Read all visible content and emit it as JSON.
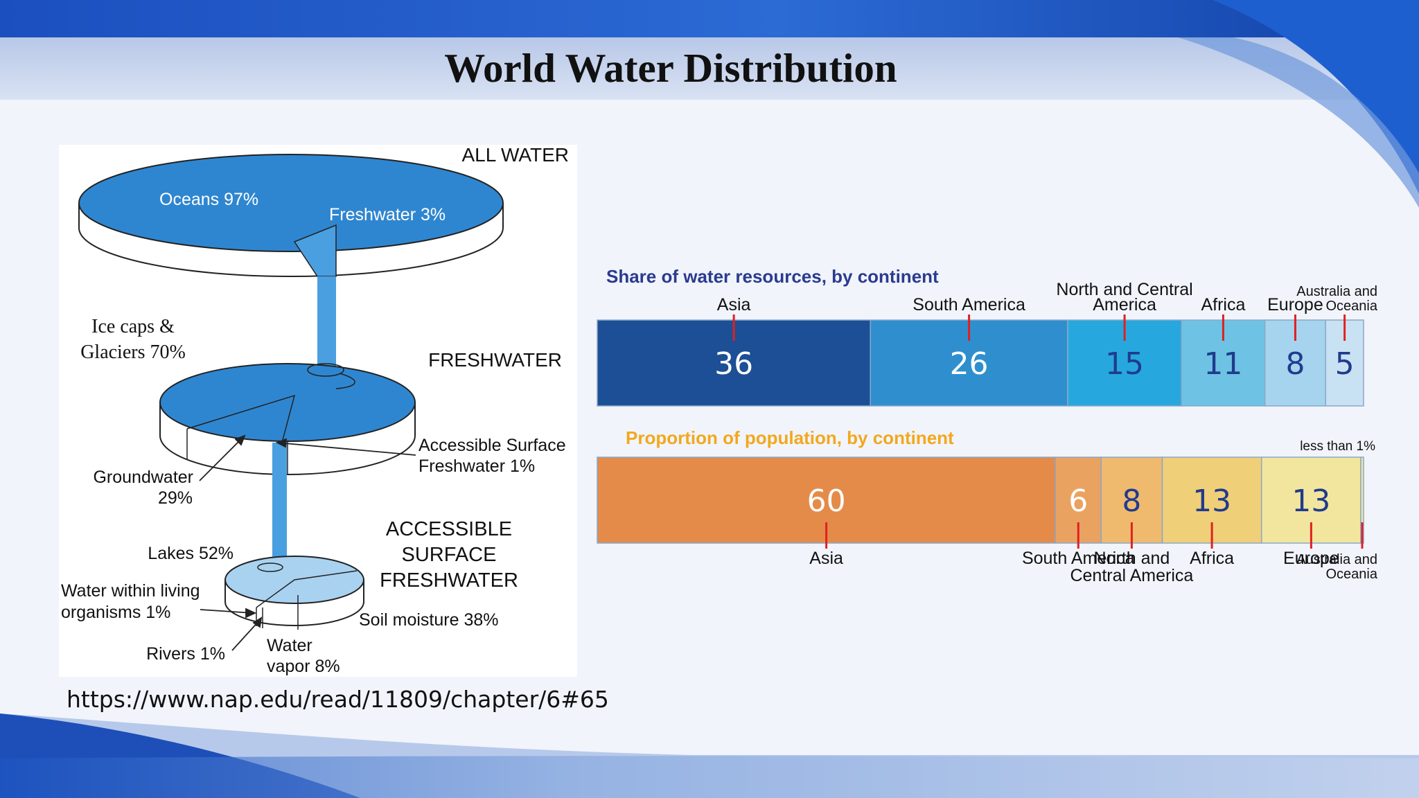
{
  "slide": {
    "title": "World Water Distribution",
    "source_url": "https://www.nap.edu/read/11809/chapter/6#65"
  },
  "diagram": {
    "tiers": {
      "all_water": "ALL WATER",
      "freshwater": "FRESHWATER",
      "accessible_line1": "ACCESSIBLE",
      "accessible_line2": "SURFACE",
      "accessible_line3": "FRESHWATER"
    },
    "labels": {
      "oceans": "Oceans 97%",
      "freshwater": "Freshwater 3%",
      "ice_line1": "Ice caps &",
      "ice_line2": "Glaciers 70%",
      "groundwater_line1": "Groundwater",
      "groundwater_line2": "29%",
      "accessible_line1": "Accessible Surface",
      "accessible_line2": "Freshwater 1%",
      "lakes": "Lakes 52%",
      "organisms_line1": "Water within living",
      "organisms_line2": "organisms 1%",
      "rivers": "Rivers 1%",
      "vapor_line1": "Water",
      "vapor_line2": "vapor 8%",
      "soil": "Soil moisture 38%"
    },
    "colors": {
      "water": "#2f86d0",
      "light_water": "#a9d2f0",
      "stream": "#4a9fe0"
    }
  },
  "chart_data": [
    {
      "type": "bar",
      "title": "Share of water resources, by continent",
      "series": [
        {
          "categories": [
            "Asia",
            "South America",
            "North and Central America",
            "Africa",
            "Europe",
            "Australia and Oceania"
          ],
          "values": [
            36,
            26,
            15,
            11,
            8,
            5
          ]
        }
      ],
      "value_labels": [
        "36",
        "26",
        "15",
        "11",
        "8",
        "5"
      ],
      "colors": [
        "#1c4f95",
        "#2f8fce",
        "#26a8de",
        "#6ec2e3",
        "#a6d3ee",
        "#c9e2f3"
      ],
      "value_text_colors": [
        "#ffffff",
        "#ffffff",
        "#203b8c",
        "#203b8c",
        "#203b8c",
        "#203b8c"
      ],
      "title_color": "#2a3b8f"
    },
    {
      "type": "bar",
      "title": "Proportion of population, by continent",
      "series": [
        {
          "categories": [
            "Asia",
            "South America",
            "North and Central America",
            "Africa",
            "Europe",
            "Australia and Oceania"
          ],
          "values": [
            60,
            6,
            8,
            13,
            13,
            0.5
          ]
        }
      ],
      "value_labels": [
        "60",
        "6",
        "8",
        "13",
        "13",
        ""
      ],
      "annotation": "less than 1%",
      "colors": [
        "#e48b4a",
        "#eaa261",
        "#efba6e",
        "#f0cf79",
        "#f2e69e",
        "#f2e69e"
      ],
      "value_text_colors": [
        "#ffffff",
        "#ffffff",
        "#203b8c",
        "#203b8c",
        "#203b8c",
        "#203b8c"
      ],
      "title_color": "#f2a81d"
    }
  ]
}
